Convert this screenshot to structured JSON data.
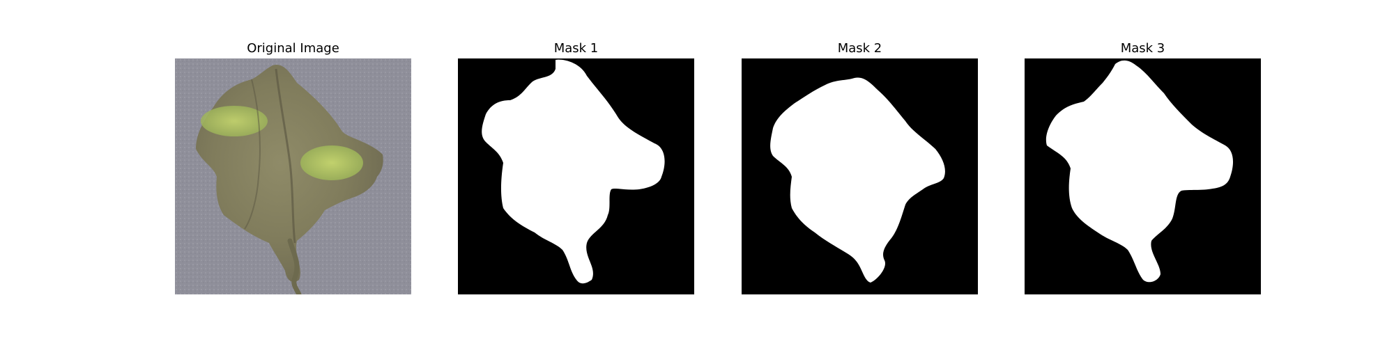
{
  "figure": {
    "panels": [
      {
        "title": "Original Image",
        "kind": "photo"
      },
      {
        "title": "Mask 1",
        "kind": "mask"
      },
      {
        "title": "Mask 2",
        "kind": "mask"
      },
      {
        "title": "Mask 3",
        "kind": "mask"
      }
    ]
  },
  "colors": {
    "background": "#ffffff",
    "mask_background": "#000000",
    "mask_foreground": "#ffffff",
    "photo_backdrop": "#8f8f9a",
    "leaf_base": "#8c8a66",
    "leaf_dark": "#6f6b52",
    "leaf_highlight": "#b9d06a",
    "stem": "#6d6a4e"
  }
}
